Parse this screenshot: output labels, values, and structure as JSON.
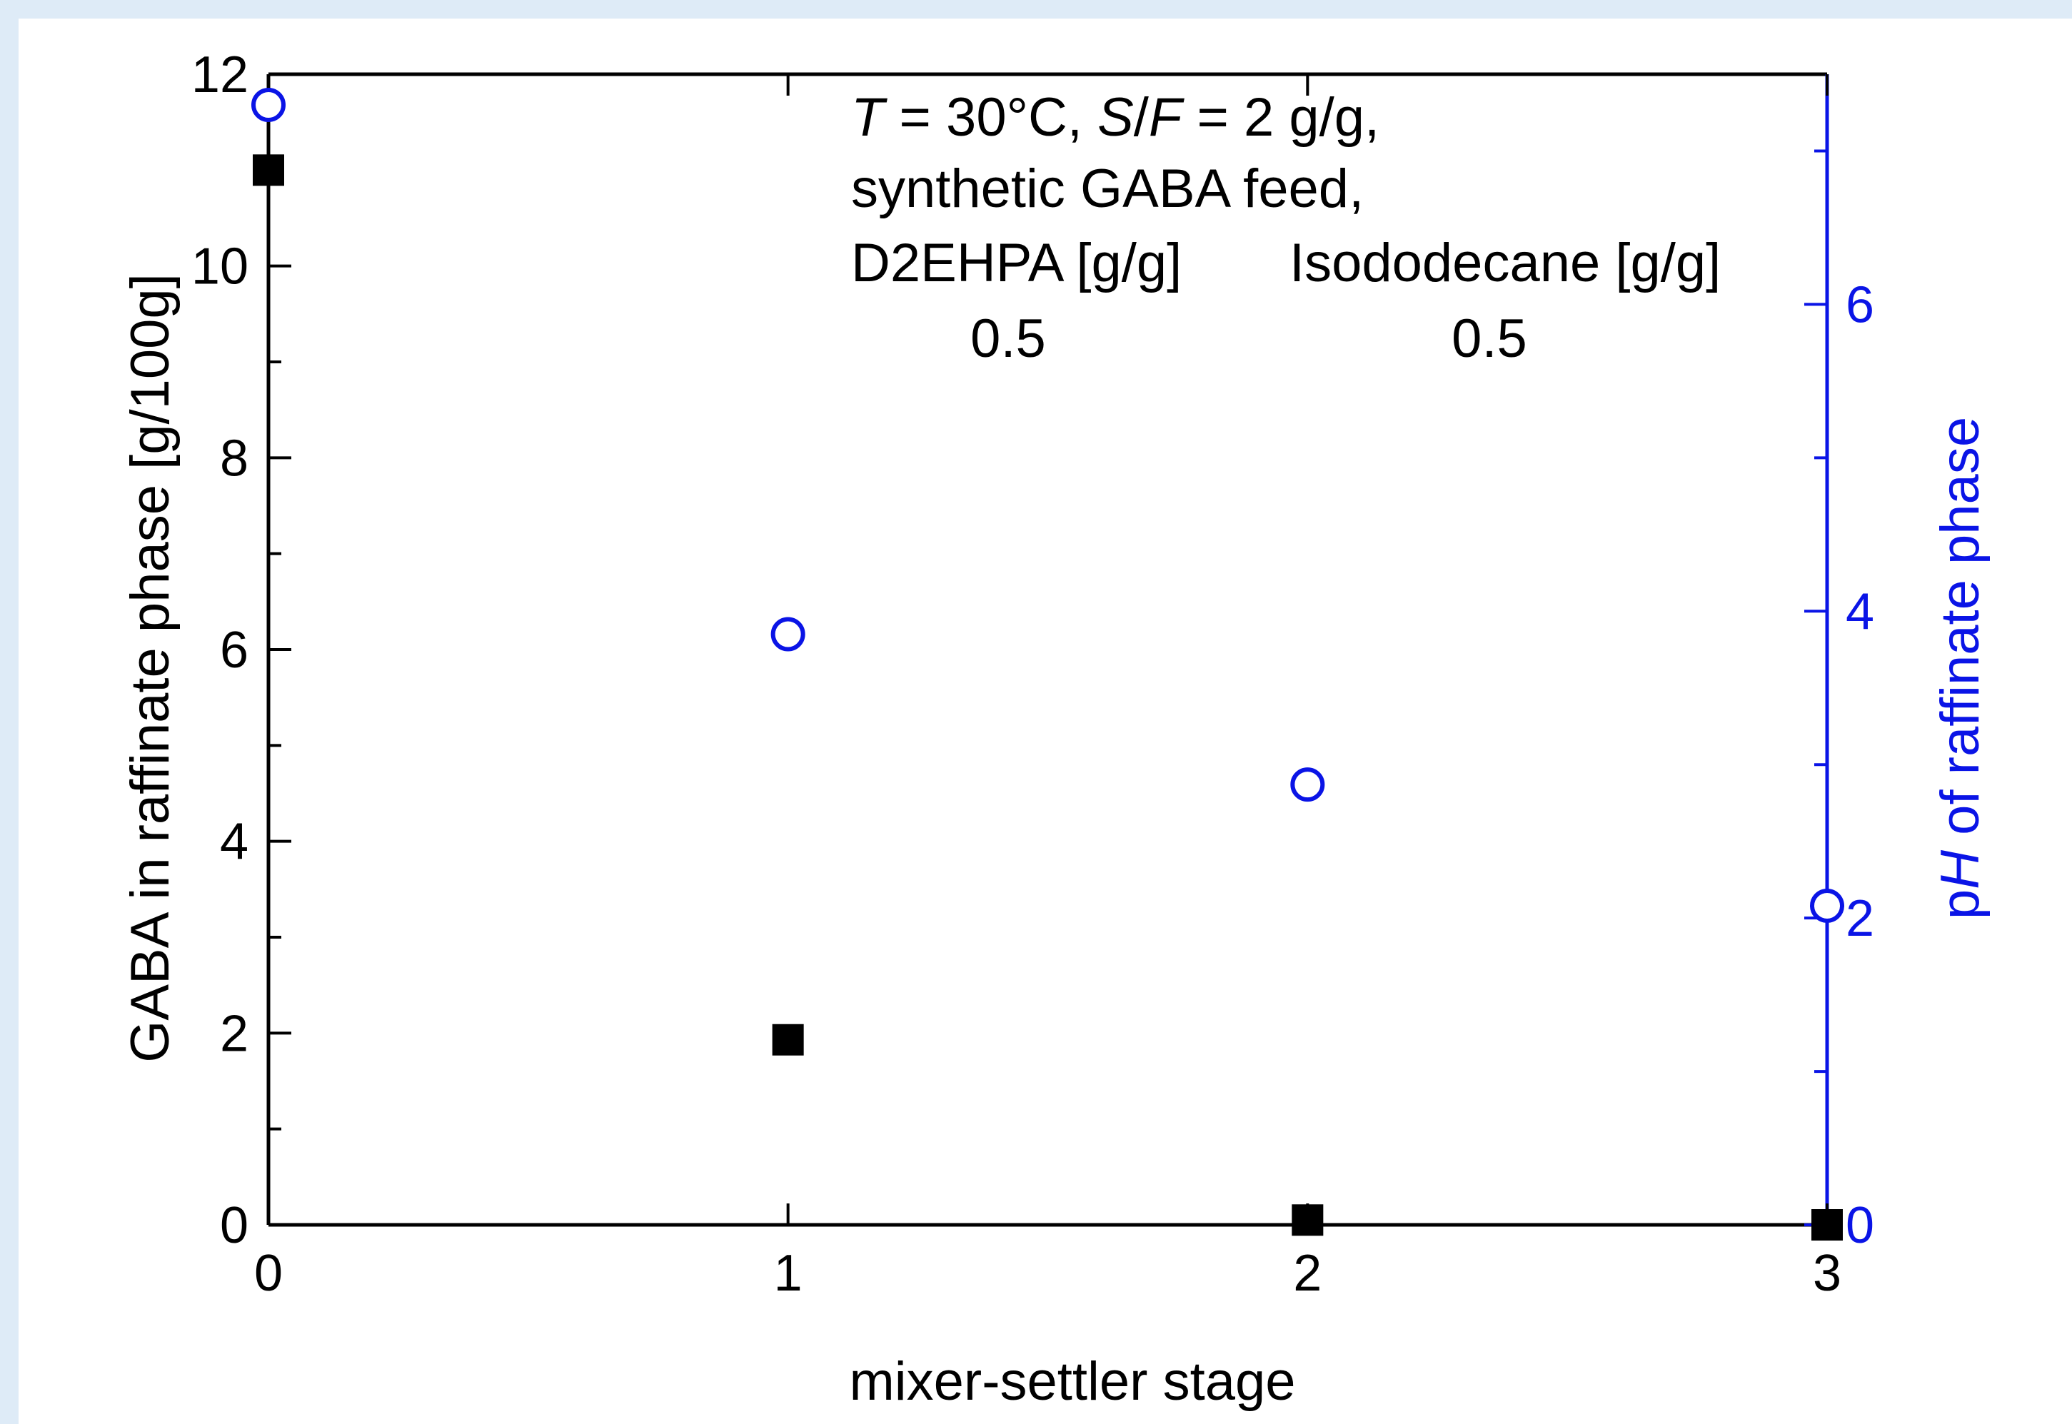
{
  "chart_data": {
    "type": "scatter",
    "xlabel": "mixer-settler stage",
    "ylabel": "GABA in raffinate phase [g/100g]",
    "y2label": {
      "prefix": "p",
      "italic": "H",
      "suffix": " of raffinate phase"
    },
    "xlim": [
      0,
      3
    ],
    "ylim": [
      0,
      12
    ],
    "y2lim": [
      0,
      7.5
    ],
    "x_ticks": [
      "0",
      "1",
      "2",
      "3"
    ],
    "y_ticks": [
      "0",
      "2",
      "4",
      "6",
      "8",
      "10",
      "12"
    ],
    "y2_ticks": [
      "0",
      "2",
      "4",
      "6"
    ],
    "grid": false,
    "series": [
      {
        "axis": "left",
        "marker": "filled-square",
        "color": "#000000",
        "points": [
          {
            "x": 0,
            "y": 11.0
          },
          {
            "x": 1,
            "y": 1.93
          },
          {
            "x": 2,
            "y": 0.05
          },
          {
            "x": 3,
            "y": 0.0
          }
        ]
      },
      {
        "axis": "right",
        "marker": "open-circle",
        "color": "#0a14e6",
        "points": [
          {
            "x": 0,
            "y": 7.3
          },
          {
            "x": 1,
            "y": 3.85
          },
          {
            "x": 2,
            "y": 2.87
          },
          {
            "x": 3,
            "y": 2.08
          }
        ]
      }
    ],
    "annotation": {
      "line1": [
        {
          "text": "T",
          "italic": true
        },
        {
          "text": " = 30°C, ",
          "italic": false
        },
        {
          "text": "S",
          "italic": true
        },
        {
          "text": "/",
          "italic": false
        },
        {
          "text": "F",
          "italic": true
        },
        {
          "text": " = 2 g/g,",
          "italic": false
        }
      ],
      "line2": "synthetic GABA feed,",
      "col1_header": "D2EHPA [g/g]",
      "col2_header": "Isododecane [g/g]",
      "col1_value": "0.5",
      "col2_value": "0.5"
    }
  }
}
